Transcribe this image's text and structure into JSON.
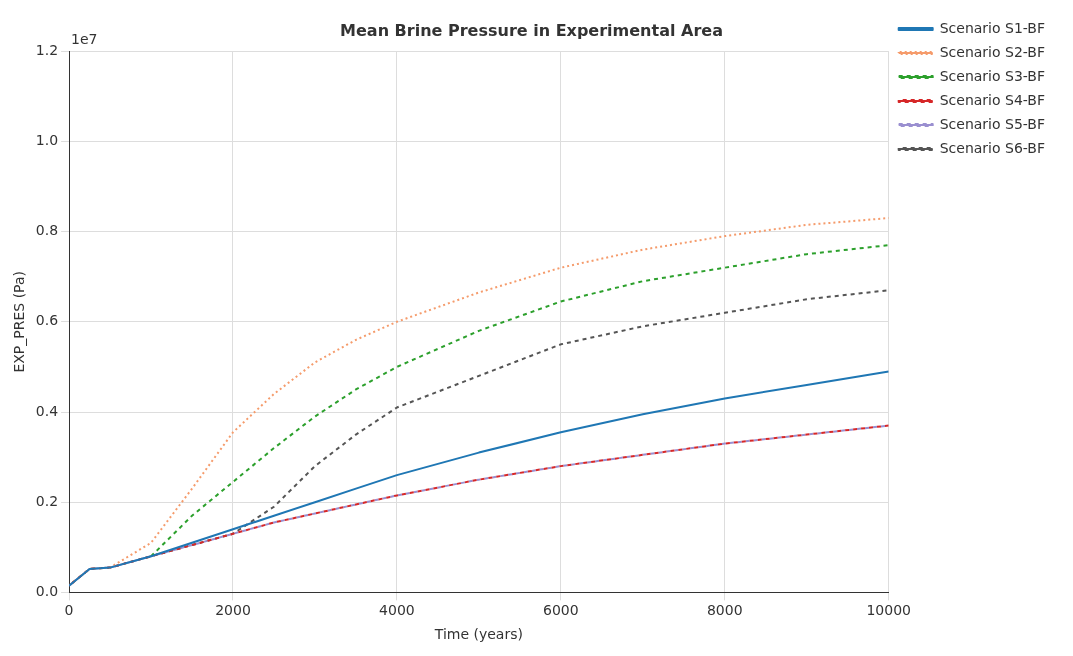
{
  "chart_data": {
    "type": "line",
    "title": "Mean Brine Pressure in Experimental Area",
    "xlabel": "Time (years)",
    "ylabel": "EXP_PRES (Pa)",
    "annotations": [
      "1e7"
    ],
    "x": [
      0,
      250,
      500,
      1000,
      1500,
      2000,
      2500,
      3000,
      3500,
      4000,
      5000,
      6000,
      7000,
      8000,
      9000,
      10000
    ],
    "series": [
      {
        "name": "Scenario S1-BF",
        "color": "#1f77b4",
        "line_style": "solid",
        "values": [
          0.015,
          0.052,
          0.055,
          0.08,
          0.11,
          0.14,
          0.17,
          0.2,
          0.23,
          0.26,
          0.31,
          0.355,
          0.395,
          0.43,
          0.46,
          0.49
        ]
      },
      {
        "name": "Scenario S2-BF",
        "color": "#f59b6b",
        "line_style": "dotted",
        "values": [
          0.015,
          0.052,
          0.055,
          0.11,
          0.23,
          0.355,
          0.44,
          0.51,
          0.56,
          0.6,
          0.665,
          0.72,
          0.76,
          0.79,
          0.815,
          0.83
        ]
      },
      {
        "name": "Scenario S3-BF",
        "color": "#2ca02c",
        "line_style": "dashed",
        "values": [
          null,
          null,
          null,
          0.08,
          0.17,
          0.245,
          0.32,
          0.39,
          0.45,
          0.5,
          0.58,
          0.645,
          0.69,
          0.72,
          0.75,
          0.77
        ]
      },
      {
        "name": "Scenario S4-BF",
        "color": "#d62728",
        "line_style": "dashed",
        "values": [
          0.015,
          0.052,
          0.055,
          0.08,
          0.105,
          0.13,
          0.155,
          0.175,
          0.195,
          0.215,
          0.25,
          0.28,
          0.305,
          0.33,
          0.35,
          0.37
        ]
      },
      {
        "name": "Scenario S5-BF",
        "color": "#9a8fd0",
        "line_style": "dashed",
        "values": [
          0.015,
          0.052,
          0.055,
          0.08,
          0.105,
          0.13,
          0.155,
          0.175,
          0.195,
          0.215,
          0.25,
          0.28,
          0.305,
          0.33,
          0.35,
          0.37
        ]
      },
      {
        "name": "Scenario S6-BF",
        "color": "#555555",
        "line_style": "dashed",
        "values": [
          0.015,
          0.052,
          0.055,
          0.08,
          0.105,
          0.13,
          0.19,
          0.28,
          0.35,
          0.41,
          0.48,
          0.55,
          0.59,
          0.62,
          0.65,
          0.67
        ]
      }
    ],
    "xlim": [
      0,
      10000
    ],
    "xticks": [
      0,
      2000,
      4000,
      6000,
      8000,
      10000
    ],
    "ylim": [
      0,
      1.2
    ],
    "yticks": [
      {
        "value": 0,
        "label": "0.0"
      },
      0.2,
      0.4,
      0.6,
      0.8,
      {
        "value": 1,
        "label": "1.0"
      },
      1.2
    ],
    "grid": true,
    "legend": "top right",
    "marker": "none"
  }
}
